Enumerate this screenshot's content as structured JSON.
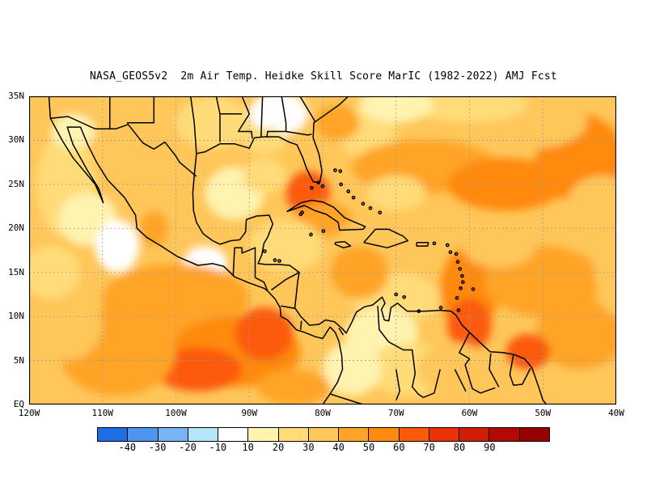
{
  "title": "NASA_GEOS5v2  2m Air Temp. Heidke Skill Score MarIC (1982-2022) AMJ Fcst",
  "map": {
    "lon_range": [
      -120,
      -40
    ],
    "lat_range": [
      0,
      35
    ],
    "lat_labels": [
      "35N",
      "30N",
      "25N",
      "20N",
      "15N",
      "10N",
      "5N",
      "EQ"
    ],
    "lat_values": [
      35,
      30,
      25,
      20,
      15,
      10,
      5,
      0
    ],
    "lon_labels": [
      "120W",
      "110W",
      "100W",
      "90W",
      "80W",
      "70W",
      "60W",
      "50W",
      "40W"
    ],
    "lon_values": [
      -120,
      -110,
      -100,
      -90,
      -80,
      -70,
      -60,
      -50,
      -40
    ]
  },
  "colorbar": {
    "colors": [
      "#1e6ee6",
      "#4d95ee",
      "#78b4f4",
      "#b4e6fa",
      "#ffffff",
      "#fff3b0",
      "#ffdc78",
      "#ffc65a",
      "#ffa428",
      "#ff8a10",
      "#fc5a0a",
      "#eb3205",
      "#d01e05",
      "#b40a05",
      "#960000"
    ],
    "labels": [
      "-40",
      "-30",
      "-20",
      "-10",
      "10",
      "20",
      "30",
      "40",
      "50",
      "60",
      "70",
      "80",
      "90"
    ]
  },
  "legend": {
    "colors": [
      "#ffffff",
      "#fff3b0",
      "#ffdc78",
      "#ffc65a",
      "#ffa428",
      "#ff8a10",
      "#fc5a0a",
      "#eb3205",
      "#d01e05"
    ]
  }
}
